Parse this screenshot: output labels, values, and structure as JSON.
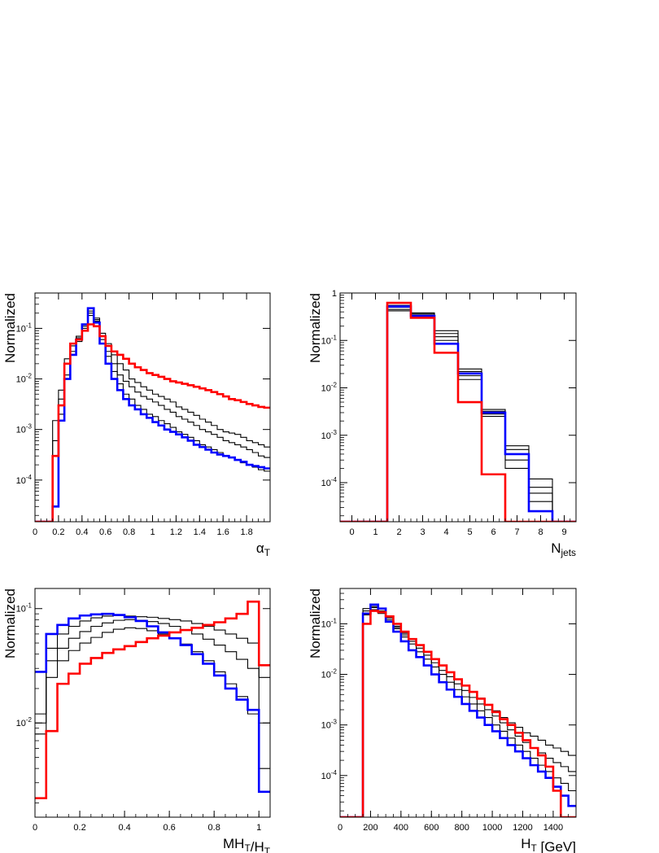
{
  "colors": {
    "frame": "#000000",
    "black_hist": "#000000",
    "blue_hist": "#0000ff",
    "red_hist": "#ff0000",
    "background": "#ffffff"
  },
  "chart_data": [
    {
      "id": "alphaT",
      "type": "line",
      "step": true,
      "title": "",
      "xlabel": "α_T",
      "ylabel": "Normalized",
      "xlim": [
        0,
        2
      ],
      "ylim": [
        1.5e-05,
        0.5
      ],
      "log_y": true,
      "x_ticks": [
        "0",
        "0.2",
        "0.4",
        "0.6",
        "0.8",
        "1",
        "1.2",
        "1.4",
        "1.6",
        "1.8"
      ],
      "x_tick_values": [
        0,
        0.2,
        0.4,
        0.6,
        0.8,
        1.0,
        1.2,
        1.4,
        1.6,
        1.8
      ],
      "y_ticks": [
        "10^-4",
        "10^-3",
        "10^-2",
        "10^-1"
      ],
      "y_tick_values": [
        0.0001,
        0.001,
        0.01,
        0.1
      ],
      "x_edges": [
        0,
        0.05,
        0.1,
        0.15,
        0.2,
        0.25,
        0.3,
        0.35,
        0.4,
        0.45,
        0.5,
        0.55,
        0.6,
        0.65,
        0.7,
        0.75,
        0.8,
        0.85,
        0.9,
        0.95,
        1.0,
        1.05,
        1.1,
        1.15,
        1.2,
        1.25,
        1.3,
        1.35,
        1.4,
        1.45,
        1.5,
        1.55,
        1.6,
        1.65,
        1.7,
        1.75,
        1.8,
        1.85,
        1.9,
        1.95,
        2.0
      ],
      "series": [
        {
          "color": "black",
          "values": [
            1.5e-05,
            1.5e-05,
            1.5e-05,
            0.0015,
            0.006,
            0.025,
            0.05,
            0.07,
            0.12,
            0.22,
            0.16,
            0.08,
            0.05,
            0.03,
            0.02,
            0.015,
            0.01,
            0.0085,
            0.007,
            0.006,
            0.005,
            0.0045,
            0.004,
            0.0035,
            0.0028,
            0.0025,
            0.0022,
            0.0019,
            0.0016,
            0.0014,
            0.0012,
            0.001,
            0.0009,
            0.00085,
            0.0008,
            0.0007,
            0.0006,
            0.00055,
            0.0005,
            0.00045
          ]
        },
        {
          "color": "black",
          "values": [
            1.5e-05,
            1.5e-05,
            1.5e-05,
            0.0006,
            0.004,
            0.02,
            0.045,
            0.065,
            0.11,
            0.2,
            0.15,
            0.07,
            0.035,
            0.02,
            0.012,
            0.009,
            0.007,
            0.0055,
            0.0045,
            0.004,
            0.0035,
            0.003,
            0.0025,
            0.0022,
            0.0018,
            0.0016,
            0.0014,
            0.0012,
            0.001,
            0.0009,
            0.0008,
            0.0007,
            0.0006,
            0.00055,
            0.0005,
            0.00045,
            0.0004,
            0.00035,
            0.0003,
            0.00028
          ]
        },
        {
          "color": "black",
          "values": [
            1.5e-05,
            1.5e-05,
            1.5e-05,
            0.0003,
            0.002,
            0.012,
            0.035,
            0.055,
            0.1,
            0.18,
            0.14,
            0.06,
            0.028,
            0.014,
            0.008,
            0.005,
            0.004,
            0.003,
            0.0025,
            0.002,
            0.0018,
            0.0015,
            0.0013,
            0.0011,
            0.0009,
            0.0008,
            0.0007,
            0.0006,
            0.0005,
            0.00045,
            0.0004,
            0.00035,
            0.0003,
            0.00028,
            0.00025,
            0.00022,
            0.0002,
            0.00018,
            0.00016,
            0.00015
          ]
        },
        {
          "name": "",
          "color": "blue",
          "values": [
            1.5e-05,
            1.5e-05,
            1.5e-05,
            3e-05,
            0.0015,
            0.01,
            0.03,
            0.06,
            0.12,
            0.25,
            0.13,
            0.05,
            0.02,
            0.01,
            0.006,
            0.004,
            0.003,
            0.0025,
            0.002,
            0.0017,
            0.0014,
            0.0012,
            0.001,
            0.0009,
            0.0008,
            0.0007,
            0.0006,
            0.0005,
            0.00045,
            0.0004,
            0.00035,
            0.00032,
            0.0003,
            0.00028,
            0.00025,
            0.00023,
            0.0002,
            0.00019,
            0.00018,
            0.00017
          ]
        },
        {
          "name": "",
          "color": "red",
          "values": [
            1.5e-05,
            1.5e-05,
            1.5e-05,
            0.0003,
            0.003,
            0.02,
            0.05,
            0.06,
            0.09,
            0.12,
            0.11,
            0.07,
            0.045,
            0.035,
            0.03,
            0.025,
            0.02,
            0.017,
            0.015,
            0.013,
            0.012,
            0.011,
            0.01,
            0.009,
            0.0085,
            0.008,
            0.0075,
            0.007,
            0.0065,
            0.006,
            0.0055,
            0.005,
            0.0045,
            0.004,
            0.0038,
            0.0035,
            0.0032,
            0.003,
            0.0028,
            0.0027
          ]
        }
      ]
    },
    {
      "id": "njets",
      "type": "line",
      "step": true,
      "title": "",
      "xlabel": "N_jets",
      "ylabel": "Normalized",
      "xlim": [
        -0.5,
        9.5
      ],
      "ylim": [
        1.5e-05,
        1
      ],
      "log_y": true,
      "x_ticks": [
        "0",
        "1",
        "2",
        "3",
        "4",
        "5",
        "6",
        "7",
        "8",
        "9"
      ],
      "x_tick_values": [
        0,
        1,
        2,
        3,
        4,
        5,
        6,
        7,
        8,
        9
      ],
      "y_ticks": [
        "10^-4",
        "10^-3",
        "10^-2",
        "10^-1",
        "1"
      ],
      "y_tick_values": [
        0.0001,
        0.001,
        0.01,
        0.1,
        1
      ],
      "x_edges": [
        -0.5,
        0.5,
        1.5,
        2.5,
        3.5,
        4.5,
        5.5,
        6.5,
        7.5,
        8.5,
        9.5
      ],
      "series": [
        {
          "color": "black",
          "values": [
            1.5e-05,
            1.5e-05,
            0.42,
            0.38,
            0.16,
            0.025,
            0.0035,
            0.0006,
            0.00012,
            1.5e-05
          ]
        },
        {
          "color": "black",
          "values": [
            1.5e-05,
            1.5e-05,
            0.45,
            0.36,
            0.14,
            0.022,
            0.0032,
            0.0005,
            8e-05,
            1.5e-05
          ]
        },
        {
          "color": "black",
          "values": [
            1.5e-05,
            1.5e-05,
            0.5,
            0.34,
            0.12,
            0.018,
            0.0028,
            0.0003,
            6e-05,
            1.5e-05
          ]
        },
        {
          "color": "black",
          "values": [
            1.5e-05,
            1.5e-05,
            0.55,
            0.32,
            0.1,
            0.015,
            0.0025,
            0.0002,
            4e-05,
            1.5e-05
          ]
        },
        {
          "name": "",
          "color": "blue",
          "values": [
            1.5e-05,
            1.5e-05,
            0.52,
            0.33,
            0.085,
            0.02,
            0.003,
            0.0004,
            2.5e-05,
            1.5e-05
          ]
        },
        {
          "name": "",
          "color": "red",
          "values": [
            1.5e-05,
            1.5e-05,
            0.62,
            0.3,
            0.055,
            0.005,
            0.00015,
            1.5e-05,
            1.5e-05,
            1.5e-05
          ]
        }
      ]
    },
    {
      "id": "mht_ht",
      "type": "line",
      "step": true,
      "title": "",
      "xlabel": "MH_T/H_T",
      "ylabel": "Normalized",
      "xlim": [
        0,
        1.05
      ],
      "ylim": [
        0.0015,
        0.15
      ],
      "log_y": true,
      "x_ticks": [
        "0",
        "0.2",
        "0.4",
        "0.6",
        "0.8",
        "1"
      ],
      "x_tick_values": [
        0,
        0.2,
        0.4,
        0.6,
        0.8,
        1.0
      ],
      "y_ticks": [
        "10^-2",
        "10^-1"
      ],
      "y_tick_values": [
        0.01,
        0.1
      ],
      "x_edges": [
        0,
        0.05,
        0.1,
        0.15,
        0.2,
        0.25,
        0.3,
        0.35,
        0.4,
        0.45,
        0.5,
        0.55,
        0.6,
        0.65,
        0.7,
        0.75,
        0.8,
        0.85,
        0.9,
        0.95,
        1.0,
        1.05
      ],
      "series": [
        {
          "color": "black",
          "values": [
            0.012,
            0.045,
            0.06,
            0.07,
            0.078,
            0.083,
            0.086,
            0.087,
            0.086,
            0.085,
            0.084,
            0.082,
            0.08,
            0.078,
            0.074,
            0.07,
            0.065,
            0.06,
            0.055,
            0.05,
            0.025
          ]
        },
        {
          "color": "black",
          "values": [
            0.01,
            0.035,
            0.045,
            0.055,
            0.063,
            0.07,
            0.075,
            0.079,
            0.08,
            0.079,
            0.077,
            0.074,
            0.07,
            0.065,
            0.06,
            0.054,
            0.048,
            0.042,
            0.036,
            0.03,
            0.01
          ]
        },
        {
          "color": "black",
          "values": [
            0.008,
            0.025,
            0.035,
            0.043,
            0.05,
            0.056,
            0.062,
            0.066,
            0.068,
            0.067,
            0.064,
            0.06,
            0.055,
            0.049,
            0.042,
            0.035,
            0.028,
            0.022,
            0.017,
            0.012,
            0.004
          ]
        },
        {
          "name": "",
          "color": "blue",
          "values": [
            0.028,
            0.06,
            0.072,
            0.082,
            0.087,
            0.089,
            0.09,
            0.088,
            0.084,
            0.078,
            0.07,
            0.062,
            0.055,
            0.048,
            0.04,
            0.033,
            0.026,
            0.02,
            0.016,
            0.013,
            0.0025
          ]
        },
        {
          "name": "",
          "color": "red",
          "values": [
            0.0022,
            0.0085,
            0.022,
            0.027,
            0.033,
            0.037,
            0.041,
            0.044,
            0.047,
            0.051,
            0.055,
            0.058,
            0.062,
            0.065,
            0.068,
            0.072,
            0.076,
            0.082,
            0.09,
            0.115,
            0.032
          ]
        }
      ]
    },
    {
      "id": "ht",
      "type": "line",
      "step": true,
      "title": "",
      "xlabel": "H_T [GeV]",
      "ylabel": "Normalized",
      "xlim": [
        0,
        1550
      ],
      "ylim": [
        1.5e-05,
        0.5
      ],
      "log_y": true,
      "x_ticks": [
        "0",
        "200",
        "400",
        "600",
        "800",
        "1000",
        "1200",
        "1400"
      ],
      "x_tick_values": [
        0,
        200,
        400,
        600,
        800,
        1000,
        1200,
        1400
      ],
      "y_ticks": [
        "10^-4",
        "10^-3",
        "10^-2",
        "10^-1"
      ],
      "y_tick_values": [
        0.0001,
        0.001,
        0.01,
        0.1
      ],
      "x_edges": [
        0,
        50,
        100,
        150,
        200,
        250,
        300,
        350,
        400,
        450,
        500,
        550,
        600,
        650,
        700,
        750,
        800,
        850,
        900,
        950,
        1000,
        1050,
        1100,
        1150,
        1200,
        1250,
        1300,
        1350,
        1400,
        1450,
        1500,
        1550
      ],
      "series": [
        {
          "color": "black",
          "values": [
            1.5e-05,
            1.5e-05,
            1.5e-05,
            0.2,
            0.19,
            0.16,
            0.12,
            0.09,
            0.065,
            0.05,
            0.038,
            0.028,
            0.02,
            0.015,
            0.011,
            0.008,
            0.006,
            0.0045,
            0.0034,
            0.0025,
            0.0019,
            0.0014,
            0.0011,
            0.0009,
            0.0007,
            0.0006,
            0.0005,
            0.0004,
            0.00035,
            0.0003,
            0.00025
          ]
        },
        {
          "color": "black",
          "values": [
            1.5e-05,
            1.5e-05,
            1.5e-05,
            0.18,
            0.21,
            0.18,
            0.12,
            0.085,
            0.06,
            0.045,
            0.033,
            0.024,
            0.017,
            0.012,
            0.009,
            0.0065,
            0.0048,
            0.0035,
            0.0026,
            0.002,
            0.0015,
            0.0011,
            0.0008,
            0.0006,
            0.00045,
            0.00035,
            0.00028,
            0.00022,
            0.00018,
            0.00015,
            0.00012
          ]
        },
        {
          "color": "black",
          "values": [
            1.5e-05,
            1.5e-05,
            1.5e-05,
            0.15,
            0.22,
            0.2,
            0.13,
            0.08,
            0.055,
            0.04,
            0.028,
            0.02,
            0.014,
            0.01,
            0.007,
            0.005,
            0.0036,
            0.0026,
            0.0019,
            0.0014,
            0.001,
            0.00075,
            0.00055,
            0.0004,
            0.0003,
            0.00022,
            0.00016,
            0.00012,
            9e-05,
            7e-05,
            5e-05
          ]
        },
        {
          "name": "",
          "color": "blue",
          "values": [
            1.5e-05,
            1.5e-05,
            1.5e-05,
            0.16,
            0.24,
            0.2,
            0.11,
            0.07,
            0.045,
            0.03,
            0.022,
            0.015,
            0.01,
            0.007,
            0.005,
            0.0036,
            0.0026,
            0.0019,
            0.0014,
            0.001,
            0.00075,
            0.00055,
            0.0004,
            0.0003,
            0.00022,
            0.00016,
            0.00012,
            9e-05,
            6e-05,
            4e-05,
            2.5e-05
          ]
        },
        {
          "name": "",
          "color": "red",
          "values": [
            1.5e-05,
            1.5e-05,
            1.5e-05,
            0.1,
            0.18,
            0.17,
            0.14,
            0.1,
            0.07,
            0.05,
            0.038,
            0.028,
            0.02,
            0.015,
            0.011,
            0.008,
            0.006,
            0.0045,
            0.0033,
            0.0025,
            0.0018,
            0.0013,
            0.001,
            0.0007,
            0.0005,
            0.00035,
            0.00025,
            0.00015,
            5e-05,
            1.5e-05,
            1.5e-05
          ]
        }
      ]
    }
  ]
}
